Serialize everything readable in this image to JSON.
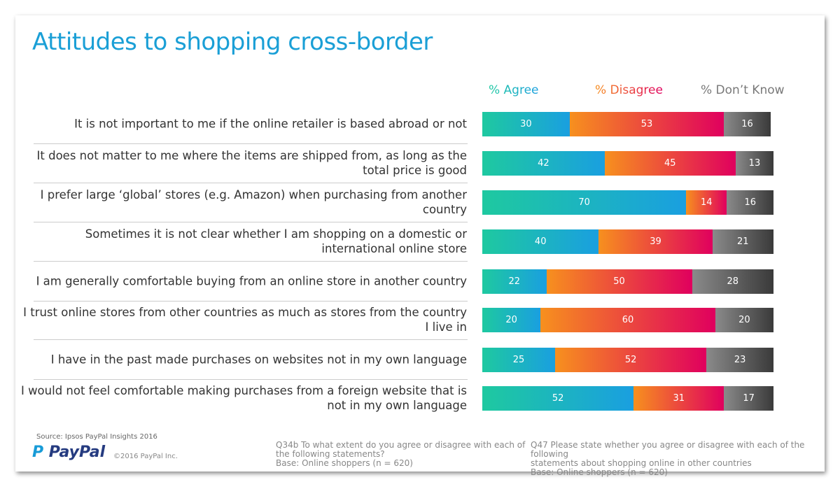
{
  "title": "Attitudes to shopping cross-border",
  "chart_data": {
    "type": "bar",
    "orientation": "horizontal",
    "stacked": true,
    "legend_position": "top",
    "categories": [
      "It is not important to me if the online retailer is based abroad or not",
      "It does not matter to me where the items are shipped from, as long as the total price is good",
      "I prefer large ‘global’ stores (e.g. Amazon) when purchasing from another country",
      "Sometimes it is not clear whether I am shopping on a domestic or international online store",
      "I am generally comfortable buying from an online store in another country",
      "I trust online stores from other countries as much as stores from the country I live in",
      "I have in the past made purchases on websites not in my own language",
      "I would not feel comfortable making purchases from a foreign website that is not in my own language"
    ],
    "series": [
      {
        "name": "% Agree",
        "values": [
          30,
          42,
          70,
          40,
          22,
          20,
          25,
          52
        ],
        "colors": [
          "#1ec9a0",
          "#1a9fe0"
        ]
      },
      {
        "name": "% Disagree",
        "values": [
          53,
          45,
          14,
          39,
          50,
          60,
          52,
          31
        ],
        "colors": [
          "#f7901e",
          "#e0005e"
        ]
      },
      {
        "name": "% Don’t Know",
        "values": [
          16,
          13,
          16,
          21,
          28,
          20,
          23,
          17
        ],
        "colors": [
          "#8a8a8a",
          "#3a3a3a"
        ]
      }
    ],
    "xlim": [
      0,
      100
    ]
  },
  "footer": {
    "source": "Source: Ipsos PayPal Insights 2016",
    "logo": "PayPal",
    "copyright": "©2016 PayPal Inc.",
    "note1": [
      "Q34b  To what extent do you agree or disagree with each of",
      "the following statements?",
      "Base: Online shoppers (n = 620)"
    ],
    "note2": [
      "Q47 Please state whether you agree or disagree with each of the following",
      "statements about shopping online in other countries",
      "Base: Online shoppers (n = 620)"
    ]
  }
}
